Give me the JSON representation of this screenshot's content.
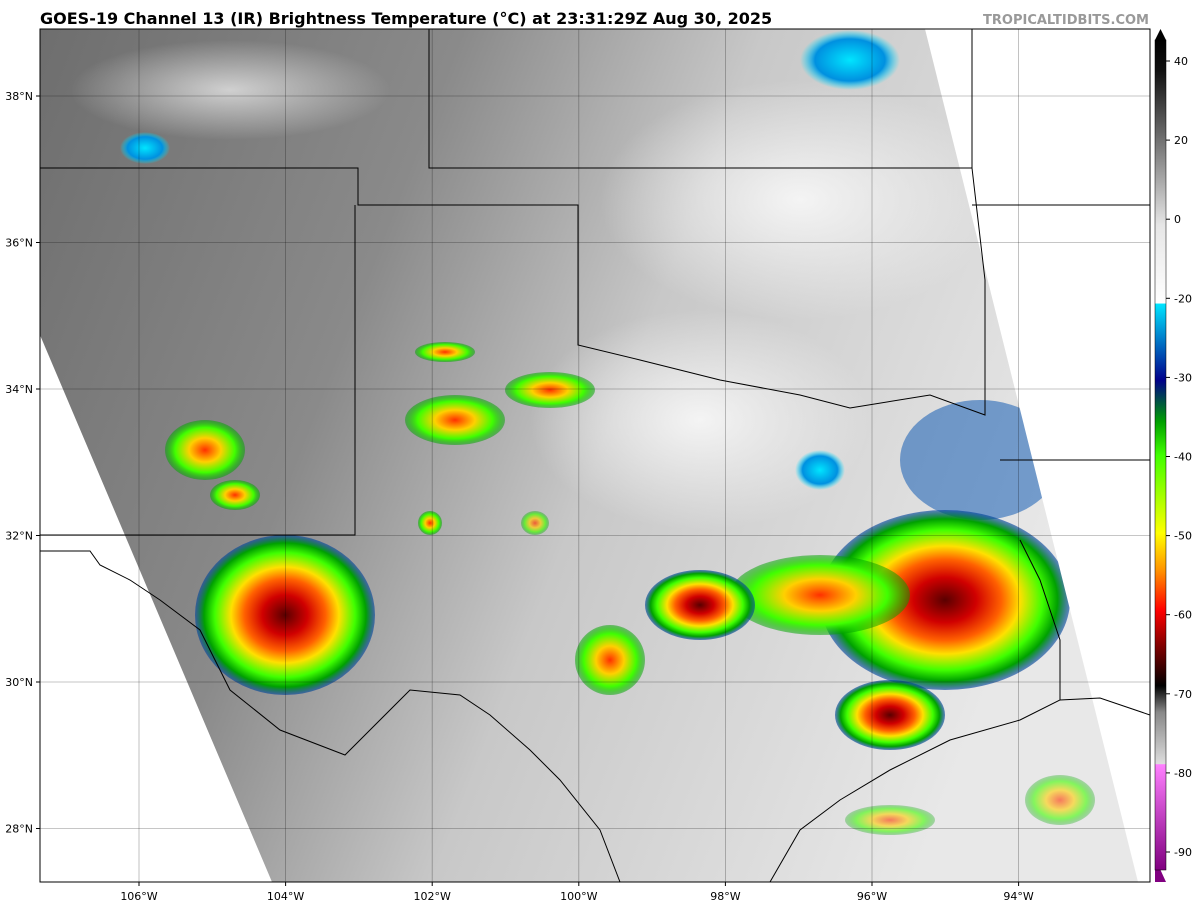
{
  "header": {
    "title": "GOES-19 Channel 13 (IR) Brightness Temperature (°C) at 23:31:29Z Aug 30, 2025",
    "site": "TROPICALTIDBITS.COM"
  },
  "map": {
    "lat_labels": [
      "38°N",
      "36°N",
      "34°N",
      "32°N",
      "30°N",
      "28°N"
    ],
    "lon_labels": [
      "106°W",
      "104°W",
      "102°W",
      "100°W",
      "98°W",
      "96°W",
      "94°W"
    ]
  },
  "colorbar": {
    "ticks": [
      40,
      20,
      0,
      -20,
      -30,
      -40,
      -50,
      -60,
      -70,
      -80,
      -90
    ]
  }
}
